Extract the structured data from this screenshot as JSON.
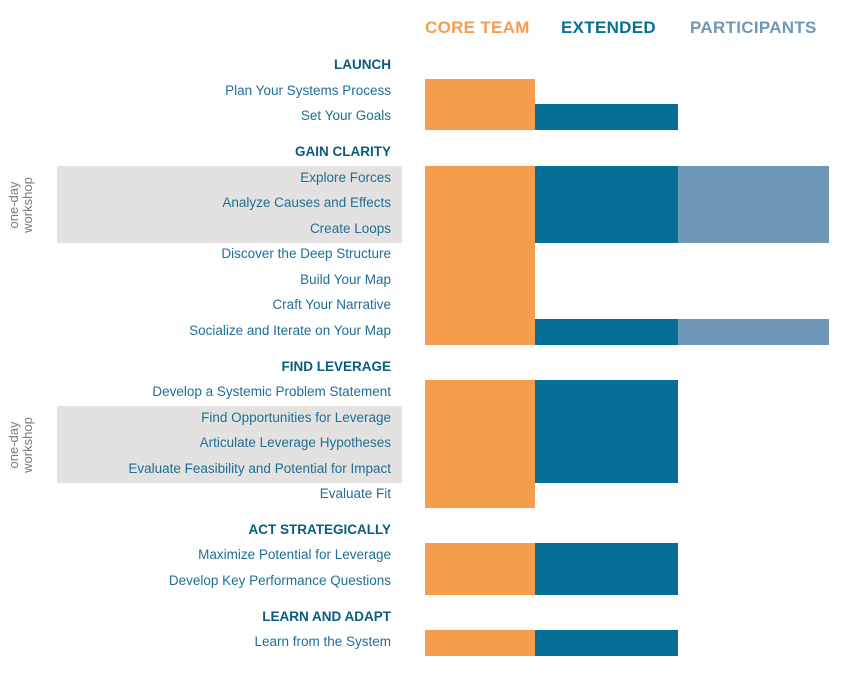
{
  "colors": {
    "core": "#f59c4d",
    "extended": "#066f96",
    "participants": "#6f98b8",
    "step_text": "#1d6f96",
    "phase_text": "#0a5c7f",
    "workshop_bg": "#e3e2e0",
    "workshop_text": "#7b7b7b"
  },
  "columns": [
    {
      "key": "core",
      "label": "CORE TEAM"
    },
    {
      "key": "extended",
      "label": "EXTENDED"
    },
    {
      "key": "participants",
      "label": "PARTICIPANTS"
    }
  ],
  "workshop_label": "one-day\nworkshop",
  "rows": [
    {
      "type": "phase",
      "text": "LAUNCH"
    },
    {
      "type": "step",
      "text": "Plan Your Systems Process",
      "roles": [
        "core"
      ]
    },
    {
      "type": "step",
      "text": "Set Your Goals",
      "roles": [
        "core",
        "extended"
      ]
    },
    {
      "type": "phase",
      "text": "GAIN CLARITY"
    },
    {
      "type": "step",
      "text": "Explore Forces",
      "roles": [
        "core",
        "extended",
        "participants"
      ],
      "workshop": true
    },
    {
      "type": "step",
      "text": "Analyze Causes and Effects",
      "roles": [
        "core",
        "extended",
        "participants"
      ],
      "workshop": true
    },
    {
      "type": "step",
      "text": "Create Loops",
      "roles": [
        "core",
        "extended",
        "participants"
      ],
      "workshop": true
    },
    {
      "type": "step",
      "text": "Discover the Deep Structure",
      "roles": [
        "core"
      ]
    },
    {
      "type": "step",
      "text": "Build Your Map",
      "roles": [
        "core"
      ]
    },
    {
      "type": "step",
      "text": "Craft Your Narrative",
      "roles": [
        "core"
      ]
    },
    {
      "type": "step",
      "text": "Socialize and Iterate on Your Map",
      "roles": [
        "core",
        "extended",
        "participants"
      ]
    },
    {
      "type": "phase",
      "text": "FIND LEVERAGE"
    },
    {
      "type": "step",
      "text": "Develop a Systemic Problem Statement",
      "roles": [
        "core",
        "extended"
      ]
    },
    {
      "type": "step",
      "text": "Find Opportunities for Leverage",
      "roles": [
        "core",
        "extended"
      ],
      "workshop": true
    },
    {
      "type": "step",
      "text": "Articulate Leverage Hypotheses",
      "roles": [
        "core",
        "extended"
      ],
      "workshop": true
    },
    {
      "type": "step",
      "text": "Evaluate Feasibility and Potential for Impact",
      "roles": [
        "core",
        "extended"
      ],
      "workshop": true
    },
    {
      "type": "step",
      "text": "Evaluate Fit",
      "roles": [
        "core"
      ]
    },
    {
      "type": "phase",
      "text": "ACT STRATEGICALLY"
    },
    {
      "type": "step",
      "text": "Maximize Potential for Leverage",
      "roles": [
        "core",
        "extended"
      ]
    },
    {
      "type": "step",
      "text": "Develop Key Performance Questions",
      "roles": [
        "core",
        "extended"
      ]
    },
    {
      "type": "phase",
      "text": "LEARN AND ADAPT"
    },
    {
      "type": "step",
      "text": "Learn from the System",
      "roles": [
        "core",
        "extended"
      ]
    }
  ]
}
